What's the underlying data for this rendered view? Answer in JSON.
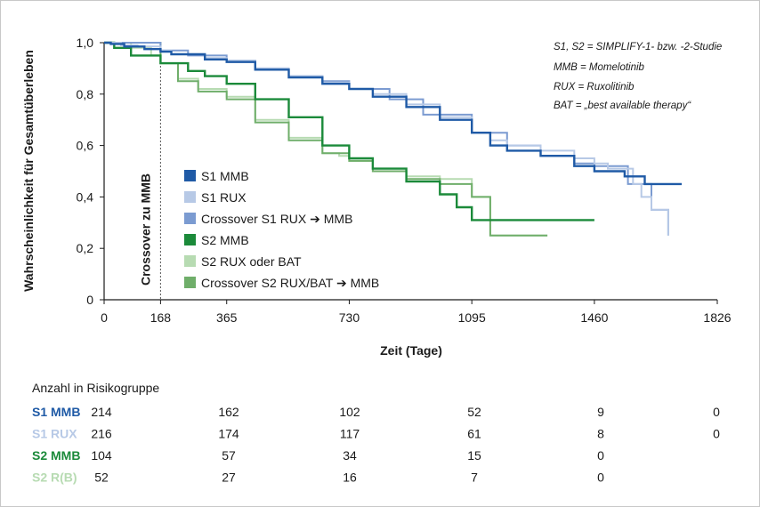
{
  "chart_data": {
    "type": "line",
    "subtype": "kaplan-meier step curves",
    "xlabel": "Zeit (Tage)",
    "ylabel": "Wahrscheinlichkeit für Gesamtüberleben",
    "xlim": [
      0,
      1826
    ],
    "ylim": [
      0,
      1.0
    ],
    "x_ticks": [
      0,
      168,
      365,
      730,
      1095,
      1460,
      1826
    ],
    "x_tick_labels": [
      "0",
      "168",
      "365",
      "730",
      "1095",
      "1460",
      "1826"
    ],
    "y_ticks": [
      0,
      0.2,
      0.4,
      0.6,
      0.8,
      1.0
    ],
    "y_tick_labels": [
      "0",
      "0,2",
      "0,4",
      "0,6",
      "0,8",
      "1,0"
    ],
    "grid": false,
    "vertical_reference": {
      "x": 168,
      "label": "Crossover zu MMB",
      "style": "dotted"
    },
    "legend_position": "center-left",
    "notes": [
      "S1, S2 = SIMPLIFY-1- bzw. -2-Studie",
      "MMB = Momelotinib",
      "RUX = Ruxolitinib",
      "BAT = „best available therapy“"
    ],
    "series": [
      {
        "name": "S1 MMB",
        "color": "#1f5aa6",
        "x": [
          0,
          20,
          60,
          120,
          168,
          200,
          300,
          365,
          450,
          550,
          650,
          730,
          800,
          900,
          1000,
          1095,
          1150,
          1200,
          1300,
          1400,
          1460,
          1550,
          1610,
          1720
        ],
        "y": [
          1.0,
          0.995,
          0.985,
          0.975,
          0.965,
          0.955,
          0.935,
          0.925,
          0.895,
          0.865,
          0.84,
          0.82,
          0.79,
          0.75,
          0.7,
          0.65,
          0.6,
          0.58,
          0.56,
          0.52,
          0.5,
          0.48,
          0.45,
          0.45
        ]
      },
      {
        "name": "S1 RUX",
        "color": "#b7c9e6",
        "x": [
          0,
          50,
          100,
          168,
          200,
          300,
          365,
          450,
          550,
          650,
          730,
          800,
          900,
          1000,
          1095,
          1150,
          1200,
          1300,
          1400,
          1460,
          1500,
          1575,
          1600,
          1630,
          1680
        ],
        "y": [
          1.0,
          0.99,
          0.985,
          0.97,
          0.955,
          0.94,
          0.93,
          0.9,
          0.87,
          0.845,
          0.82,
          0.8,
          0.76,
          0.71,
          0.65,
          0.62,
          0.6,
          0.58,
          0.55,
          0.53,
          0.51,
          0.45,
          0.4,
          0.35,
          0.25
        ]
      },
      {
        "name": "Crossover S1 RUX ➔ MMB",
        "color": "#7b9bd1",
        "x": [
          0,
          168,
          250,
          365,
          450,
          550,
          650,
          730,
          850,
          950,
          1095,
          1200,
          1300,
          1400,
          1460,
          1560,
          1630,
          1680
        ],
        "y": [
          1.0,
          0.97,
          0.95,
          0.93,
          0.9,
          0.87,
          0.85,
          0.82,
          0.78,
          0.72,
          0.65,
          0.6,
          0.56,
          0.53,
          0.52,
          0.45,
          0.35,
          0.25
        ]
      },
      {
        "name": "S2 MMB",
        "color": "#1b8a3a",
        "x": [
          0,
          30,
          80,
          168,
          250,
          300,
          365,
          450,
          550,
          650,
          730,
          800,
          900,
          1000,
          1050,
          1095,
          1200,
          1300,
          1400,
          1460
        ],
        "y": [
          1.0,
          0.98,
          0.95,
          0.92,
          0.89,
          0.87,
          0.84,
          0.78,
          0.71,
          0.6,
          0.55,
          0.51,
          0.46,
          0.41,
          0.36,
          0.31,
          0.31,
          0.31,
          0.31,
          0.31
        ]
      },
      {
        "name": "S2 RUX oder BAT",
        "color": "#b7dbb2",
        "x": [
          0,
          80,
          140,
          168,
          220,
          280,
          365,
          450,
          550,
          650,
          700,
          730,
          800,
          900,
          1000,
          1095,
          1150,
          1200,
          1280,
          1320
        ],
        "y": [
          1.0,
          0.98,
          0.95,
          0.92,
          0.86,
          0.82,
          0.79,
          0.7,
          0.63,
          0.57,
          0.56,
          0.54,
          0.5,
          0.48,
          0.47,
          0.4,
          0.25,
          0.25,
          0.25,
          0.25
        ]
      },
      {
        "name": "Crossover S2 RUX/BAT ➔ MMB",
        "color": "#6fae6a",
        "x": [
          0,
          168,
          220,
          280,
          365,
          450,
          550,
          650,
          730,
          800,
          900,
          1000,
          1095,
          1150,
          1320
        ],
        "y": [
          1.0,
          0.92,
          0.85,
          0.81,
          0.78,
          0.69,
          0.62,
          0.57,
          0.54,
          0.5,
          0.47,
          0.45,
          0.4,
          0.25,
          0.25
        ]
      }
    ],
    "risk_table": {
      "title": "Anzahl in Risikogruppe",
      "rows": [
        {
          "label": "S1 MMB",
          "color": "#1f5aa6",
          "values": [
            "214",
            "162",
            "102",
            "52",
            "9",
            "0"
          ]
        },
        {
          "label": "S1 RUX",
          "color": "#b7c9e6",
          "values": [
            "216",
            "174",
            "117",
            "61",
            "8",
            "0"
          ]
        },
        {
          "label": "S2 MMB",
          "color": "#1b8a3a",
          "values": [
            "104",
            "57",
            "34",
            "15",
            "0"
          ]
        },
        {
          "label": "S2 R(B)",
          "color": "#b7dbb2",
          "values": [
            "52",
            "27",
            "16",
            "7",
            "0"
          ]
        }
      ]
    }
  }
}
